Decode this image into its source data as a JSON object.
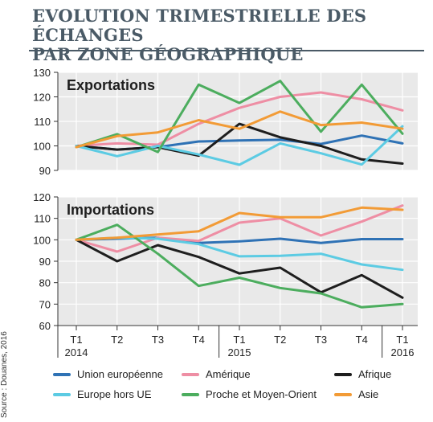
{
  "title_line1": "EVOLUTION TRIMESTRIELLE DES ÉCHANGES",
  "title_line2": "PAR ZONE GÉOGRAPHIQUE",
  "source": "Source : Douanes, 2016",
  "colors": {
    "Union européenne": "#2f72b5",
    "Amérique": "#ee8ea4",
    "Afrique": "#1e1e1e",
    "Europe hors UE": "#5ccbe3",
    "Proche et Moyen-Orient": "#4cad5e",
    "Asie": "#f29b36",
    "panel_bg": "#e9e9e9"
  },
  "chart_data": [
    {
      "type": "line",
      "title": "Exportations",
      "categories": [
        "T1 2014",
        "T2",
        "T3",
        "T4",
        "T1 2015",
        "T2",
        "T3",
        "T4",
        "T1 2016"
      ],
      "ylim": [
        90,
        130
      ],
      "yticks": [
        90,
        100,
        110,
        120,
        130
      ],
      "grid": true,
      "series": [
        {
          "name": "Union européenne",
          "values": [
            100,
            98.5,
            99.5,
            101.8,
            102.2,
            102.5,
            100.8,
            104.2,
            101
          ]
        },
        {
          "name": "Amérique",
          "values": [
            100,
            101,
            100.5,
            109,
            115.5,
            120,
            121.8,
            119,
            114.5
          ]
        },
        {
          "name": "Afrique",
          "values": [
            100,
            98.5,
            99.5,
            96,
            109,
            103.5,
            100,
            94.5,
            92.8
          ]
        },
        {
          "name": "Europe hors UE",
          "values": [
            100,
            95.8,
            100,
            96.5,
            92.3,
            101,
            97,
            92.4,
            108
          ]
        },
        {
          "name": "Proche et Moyen-Orient",
          "values": [
            99.5,
            104.8,
            97.5,
            125,
            117.5,
            126.5,
            105.8,
            125,
            105
          ]
        },
        {
          "name": "Asie",
          "values": [
            99.5,
            104,
            105.5,
            110.5,
            107,
            114,
            108.5,
            109.5,
            107
          ]
        }
      ]
    },
    {
      "type": "line",
      "title": "Importations",
      "categories": [
        "T1 2014",
        "T2",
        "T3",
        "T4",
        "T1 2015",
        "T2",
        "T3",
        "T4",
        "T1 2016"
      ],
      "ylim": [
        60,
        120
      ],
      "yticks": [
        60,
        70,
        80,
        90,
        100,
        110,
        120
      ],
      "grid": true,
      "series": [
        {
          "name": "Union européenne",
          "values": [
            100,
            100.5,
            101,
            98.5,
            99.3,
            100.5,
            98.5,
            100.3,
            100.3
          ]
        },
        {
          "name": "Amérique",
          "values": [
            100,
            94.5,
            101,
            99.5,
            108,
            110,
            102,
            108.5,
            116
          ]
        },
        {
          "name": "Afrique",
          "values": [
            100,
            90,
            97.5,
            92,
            84.3,
            87,
            75.5,
            83.5,
            73
          ]
        },
        {
          "name": "Europe hors UE",
          "values": [
            100,
            101,
            100.5,
            98,
            92.3,
            92.5,
            93.5,
            88.5,
            86
          ]
        },
        {
          "name": "Proche et Moyen-Orient",
          "values": [
            100,
            107,
            93.5,
            78.5,
            82.3,
            77.5,
            75,
            68.5,
            70
          ]
        },
        {
          "name": "Asie",
          "values": [
            100,
            101,
            102.5,
            104,
            112.5,
            110.5,
            110.5,
            115,
            114
          ]
        }
      ]
    }
  ],
  "legend": [
    "Union européenne",
    "Amérique",
    "Afrique",
    "Europe hors UE",
    "Proche et Moyen-Orient",
    "Asie"
  ]
}
